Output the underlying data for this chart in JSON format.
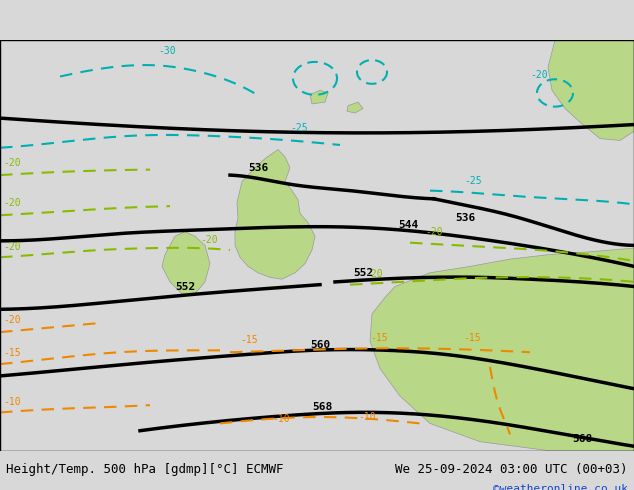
{
  "title_left": "Height/Temp. 500 hPa [gdmp][°C] ECMWF",
  "title_right": "We 25-09-2024 03:00 UTC (00+03)",
  "watermark": "©weatheronline.co.uk",
  "bg_color": "#d8d8d8",
  "land_color": "#b8d888",
  "figsize": [
    6.34,
    4.9
  ],
  "dpi": 100,
  "geop_color": "#000000",
  "cyan_color": "#00b0b0",
  "green_color": "#88bb00",
  "orange_color": "#ee8800",
  "geop_lw": 2.5,
  "temp_lw": 1.5,
  "title_fs": 9,
  "label_fs": 8
}
